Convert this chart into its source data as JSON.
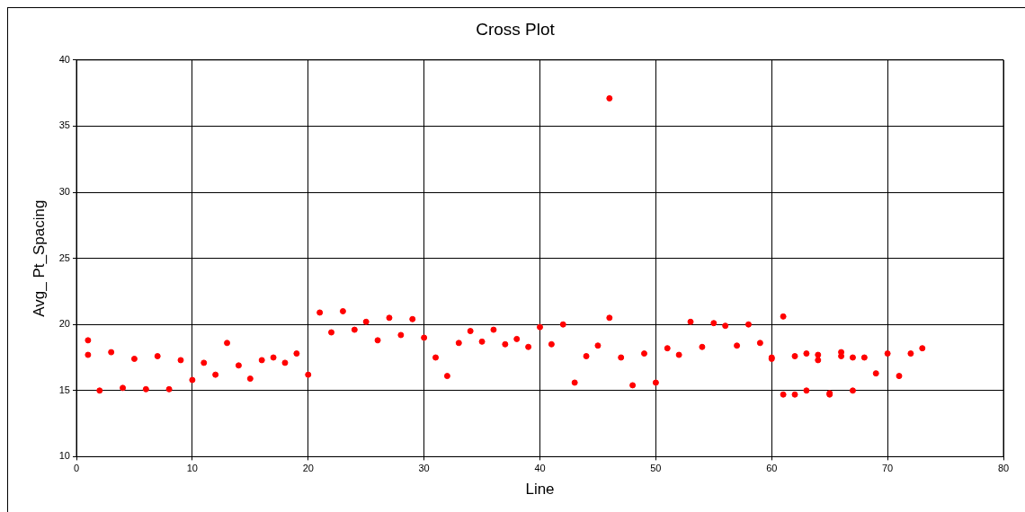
{
  "chart_data": {
    "type": "scatter",
    "title": "Cross Plot",
    "xlabel": "Line",
    "ylabel": "Avg_ Pt_Spacing",
    "x": [
      1,
      1,
      2,
      3,
      4,
      5,
      6,
      7,
      8,
      9,
      10,
      11,
      12,
      13,
      14,
      15,
      16,
      17,
      18,
      19,
      20,
      21,
      22,
      23,
      24,
      25,
      26,
      27,
      28,
      29,
      30,
      31,
      32,
      33,
      34,
      35,
      36,
      37,
      38,
      39,
      40,
      41,
      42,
      43,
      44,
      45,
      46,
      46,
      47,
      48,
      49,
      50,
      51,
      52,
      53,
      54,
      55,
      56,
      57,
      58,
      59,
      60,
      60,
      61,
      61,
      62,
      62,
      63,
      63,
      64,
      64,
      65,
      65,
      66,
      66,
      67,
      67,
      68,
      69,
      70,
      71,
      72,
      73
    ],
    "series": [
      {
        "color": "#ff0000",
        "values": [
          18.8,
          17.7,
          15.0,
          17.9,
          15.2,
          17.4,
          15.1,
          17.6,
          15.1,
          17.3,
          15.8,
          17.1,
          16.2,
          18.6,
          16.9,
          15.9,
          17.3,
          17.5,
          17.1,
          17.8,
          16.2,
          20.9,
          19.4,
          21.0,
          19.6,
          20.2,
          18.8,
          20.5,
          19.2,
          20.4,
          19.0,
          17.5,
          16.1,
          18.6,
          19.5,
          18.7,
          19.6,
          18.5,
          18.9,
          18.3,
          19.8,
          18.5,
          20.0,
          15.6,
          17.6,
          18.4,
          37.1,
          20.5,
          17.5,
          15.4,
          17.8,
          15.6,
          18.2,
          17.7,
          20.2,
          18.3,
          20.1,
          19.9,
          18.4,
          20.0,
          18.6,
          17.5,
          17.4,
          20.6,
          14.7,
          14.7,
          17.6,
          17.8,
          15.0,
          17.7,
          17.3,
          14.8,
          14.7,
          17.9,
          17.6,
          17.5,
          15.0,
          17.5,
          16.3,
          17.8,
          16.1,
          17.8,
          18.2
        ]
      }
    ],
    "xlim": [
      0,
      80
    ],
    "xticks": [
      0,
      10,
      20,
      30,
      40,
      50,
      60,
      70,
      80
    ],
    "ylim": [
      10,
      40
    ],
    "yticks": [
      10,
      15,
      20,
      25,
      30,
      35,
      40
    ],
    "grid": true,
    "legend": false,
    "marker": "circle"
  }
}
